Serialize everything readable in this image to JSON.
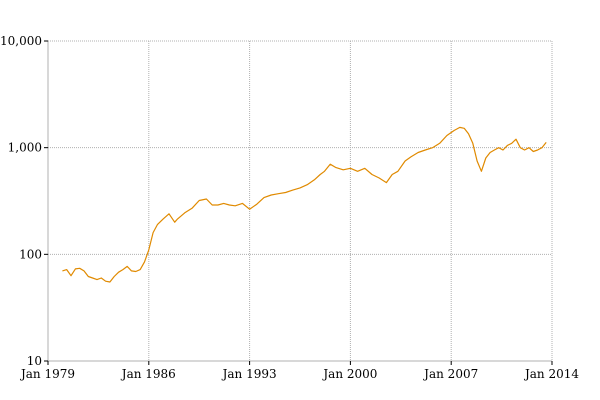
{
  "chart_data": {
    "type": "line",
    "title": "",
    "xlabel": "",
    "ylabel": "",
    "yscale": "log",
    "grid": true,
    "line_color": "#E08A00",
    "xlim": [
      1979.0,
      2014.0
    ],
    "ylim": [
      10,
      10000
    ],
    "x_ticks": [
      {
        "value": 1979.0,
        "label": "Jan 1979"
      },
      {
        "value": 1986.0,
        "label": "Jan 1986"
      },
      {
        "value": 1993.0,
        "label": "Jan 1993"
      },
      {
        "value": 2000.0,
        "label": "Jan 2000"
      },
      {
        "value": 2007.0,
        "label": "Jan 2007"
      },
      {
        "value": 2014.0,
        "label": "Jan 2014"
      }
    ],
    "y_ticks": [
      {
        "value": 10,
        "label": "10"
      },
      {
        "value": 100,
        "label": "100"
      },
      {
        "value": 1000,
        "label": "1,000"
      },
      {
        "value": 10000,
        "label": "10,000"
      }
    ],
    "series": [
      {
        "x": [
          1980.0,
          1980.3,
          1980.6,
          1980.9,
          1981.2,
          1981.5,
          1981.8,
          1982.1,
          1982.4,
          1982.7,
          1983.0,
          1983.3,
          1983.6,
          1983.9,
          1984.2,
          1984.5,
          1984.8,
          1985.1,
          1985.4,
          1985.7,
          1986.0,
          1986.3,
          1986.6,
          1987.0,
          1987.4,
          1987.8,
          1988.0,
          1988.5,
          1989.0,
          1989.5,
          1990.0,
          1990.4,
          1990.8,
          1991.2,
          1991.6,
          1992.0,
          1992.5,
          1993.0,
          1993.5,
          1994.0,
          1994.5,
          1995.0,
          1995.5,
          1996.0,
          1996.5,
          1997.0,
          1997.5,
          1997.9,
          1998.2,
          1998.6,
          1999.0,
          1999.5,
          2000.0,
          2000.5,
          2001.0,
          2001.5,
          2002.0,
          2002.5,
          2002.9,
          2003.3,
          2003.8,
          2004.2,
          2004.7,
          2005.2,
          2005.7,
          2006.2,
          2006.7,
          2007.2,
          2007.6,
          2007.9,
          2008.2,
          2008.5,
          2008.8,
          2009.1,
          2009.4,
          2009.7,
          2010.0,
          2010.3,
          2010.6,
          2010.9,
          2011.2,
          2011.5,
          2011.8,
          2012.1,
          2012.4,
          2012.7,
          2013.0,
          2013.3,
          2013.6
        ],
        "values": [
          70,
          72,
          63,
          73,
          74,
          70,
          62,
          60,
          58,
          60,
          56,
          55,
          62,
          68,
          72,
          77,
          70,
          69,
          72,
          85,
          110,
          160,
          190,
          215,
          240,
          200,
          215,
          245,
          270,
          320,
          330,
          290,
          290,
          300,
          290,
          285,
          300,
          265,
          295,
          340,
          360,
          370,
          380,
          400,
          420,
          450,
          500,
          560,
          600,
          700,
          650,
          620,
          640,
          600,
          640,
          560,
          520,
          470,
          560,
          600,
          750,
          820,
          900,
          950,
          1000,
          1100,
          1300,
          1450,
          1550,
          1520,
          1350,
          1100,
          750,
          600,
          800,
          900,
          950,
          1000,
          950,
          1050,
          1100,
          1200,
          1000,
          950,
          1000,
          920,
          950,
          1000,
          1120
        ]
      }
    ]
  }
}
